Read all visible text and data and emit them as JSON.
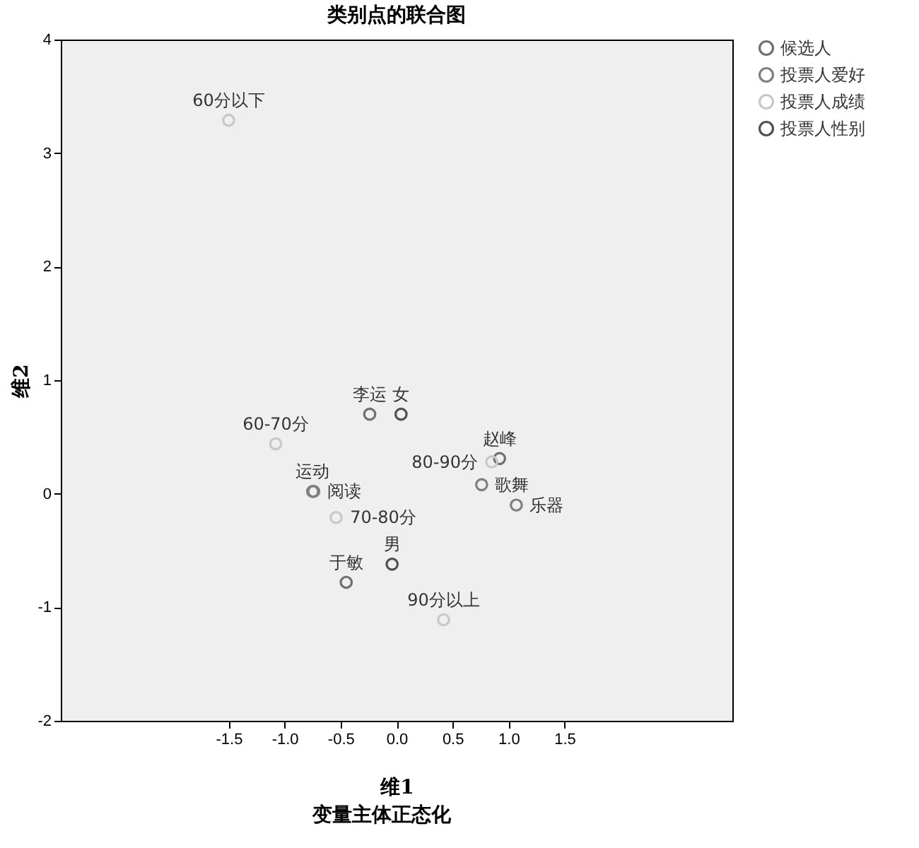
{
  "chart_data": {
    "type": "scatter",
    "title": "类别点的联合图",
    "xlabel": "维1",
    "ylabel": "维2",
    "xlim": [
      -3,
      3
    ],
    "ylim": [
      -2,
      4
    ],
    "xticks": [
      -1.5,
      {
        "value": -1,
        "label": "-1.0"
      },
      -0.5,
      {
        "value": 0,
        "label": "0.0"
      },
      0.5,
      {
        "value": 1,
        "label": "1.0"
      },
      1.5
    ],
    "yticks": [
      -2,
      -1,
      0,
      1,
      2,
      3,
      4
    ],
    "grid": false,
    "legend": "top right",
    "marker": "circle",
    "series": [
      {
        "name": "候选人",
        "color": "#707070",
        "x": [
          -0.24,
          0.92,
          -0.45
        ],
        "values": [
          0.7,
          0.31,
          -0.78
        ]
      },
      {
        "name": "投票人爱好",
        "color": "#808080",
        "x": [
          -0.75,
          -0.74,
          0.76,
          1.07
        ],
        "values": [
          0.02,
          0.02,
          0.08,
          -0.1
        ]
      },
      {
        "name": "投票人成绩",
        "color": "#c8c8c8",
        "x": [
          -1.5,
          -1.08,
          -0.54,
          0.85,
          0.42
        ],
        "values": [
          3.29,
          0.44,
          -0.21,
          0.28,
          -1.11
        ]
      },
      {
        "name": "投票人性别",
        "color": "#505050",
        "x": [
          0.04,
          -0.04
        ],
        "values": [
          0.7,
          -0.62
        ]
      }
    ],
    "annotations": [
      {
        "text": "60分以下",
        "x": -1.5,
        "y": 3.29
      },
      {
        "text": "60-70分",
        "x": -1.08,
        "y": 0.44
      },
      {
        "text": "运动",
        "x": -0.75,
        "y": 0.02
      },
      {
        "text": "阅读",
        "x": -0.74,
        "y": 0.02
      },
      {
        "text": "70-80分",
        "x": -0.54,
        "y": -0.21
      },
      {
        "text": "李运",
        "x": -0.24,
        "y": 0.7
      },
      {
        "text": "女",
        "x": 0.04,
        "y": 0.7
      },
      {
        "text": "80-90分",
        "x": 0.85,
        "y": 0.28
      },
      {
        "text": "歌舞",
        "x": 0.76,
        "y": 0.08
      },
      {
        "text": "赵峰",
        "x": 0.92,
        "y": 0.31
      },
      {
        "text": "乐器",
        "x": 1.07,
        "y": -0.1
      },
      {
        "text": "男",
        "x": -0.04,
        "y": -0.62
      },
      {
        "text": "于敏",
        "x": -0.45,
        "y": -0.78
      },
      {
        "text": "90分以上",
        "x": 0.42,
        "y": -1.11
      },
      "变量主体正态化"
    ]
  }
}
